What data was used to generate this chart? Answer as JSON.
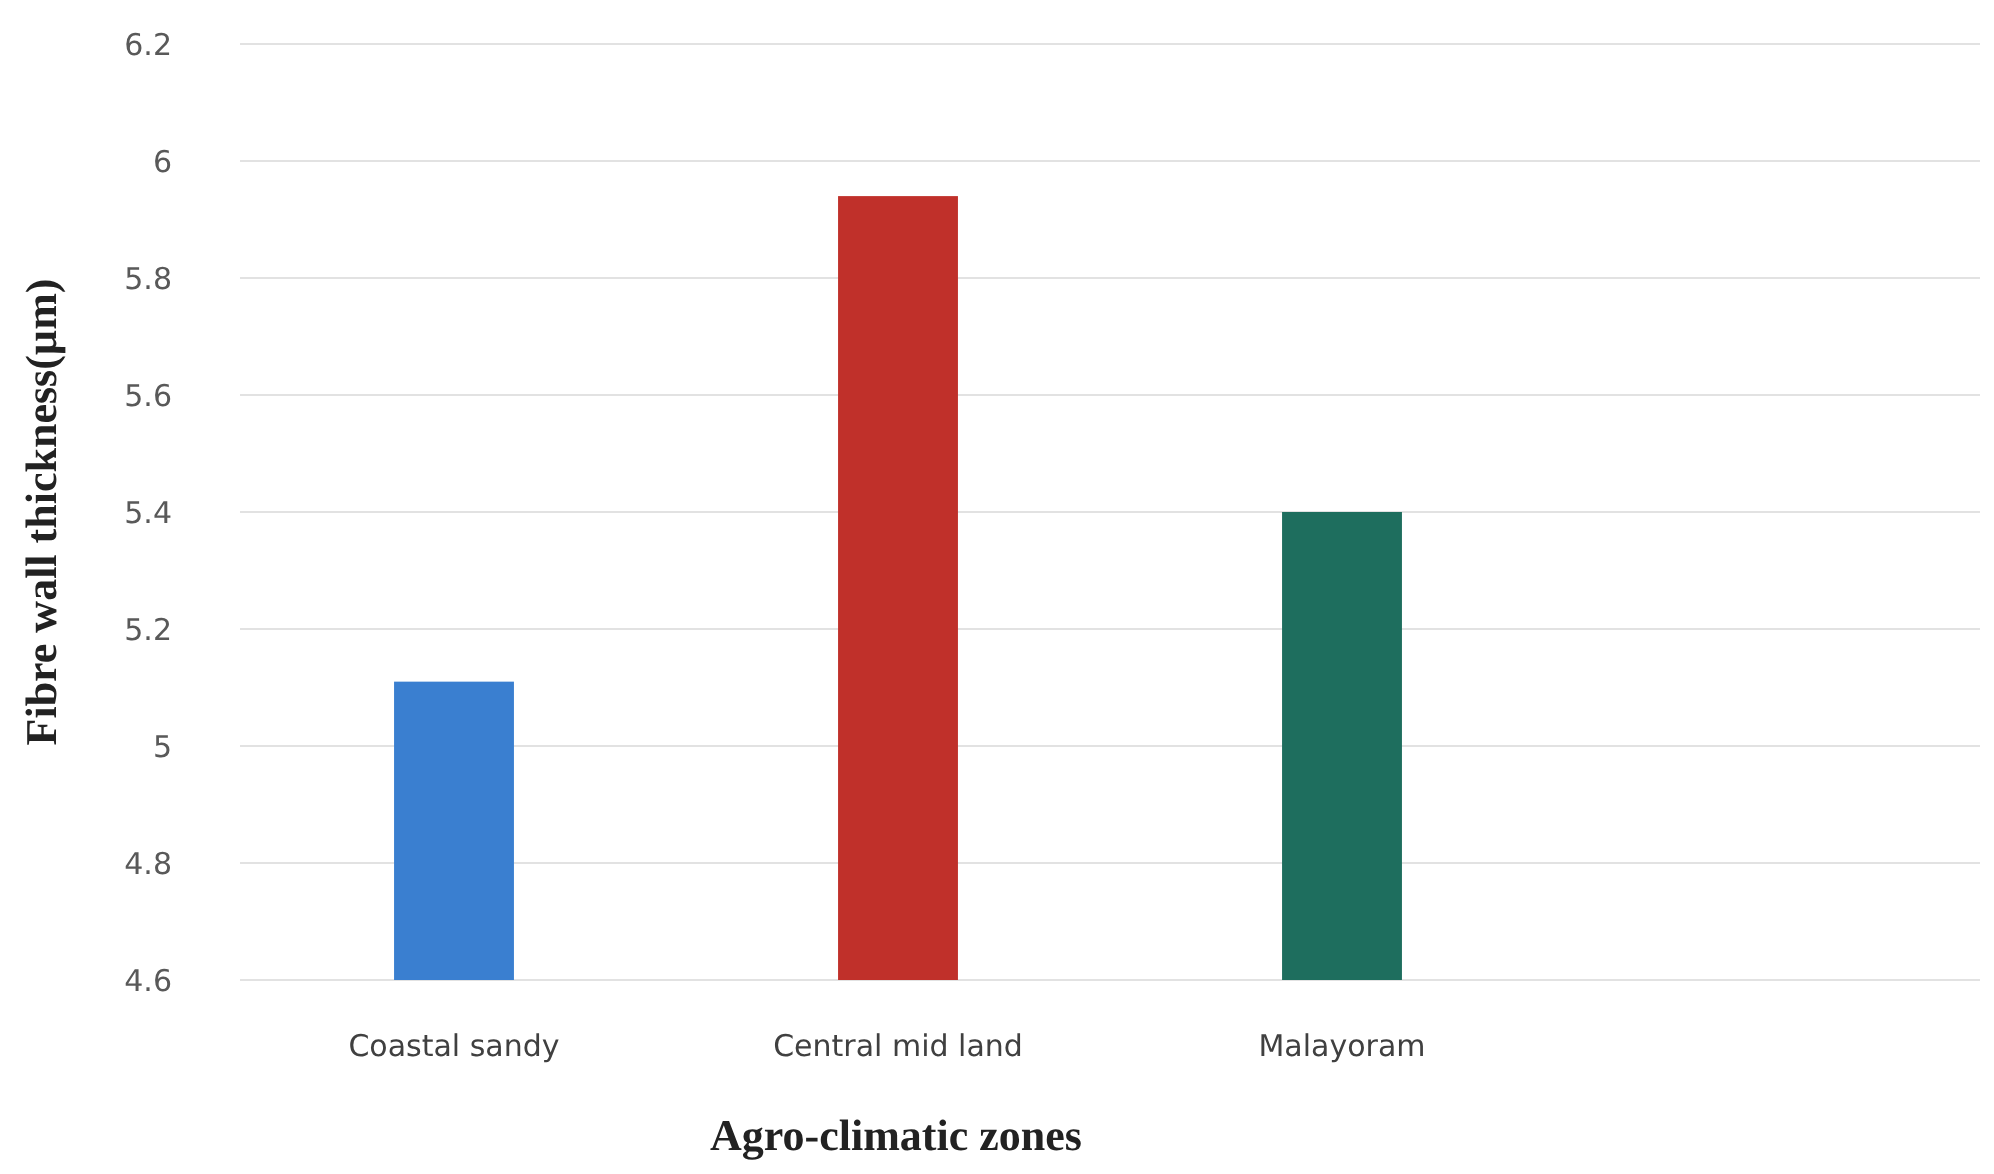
{
  "chart_data": {
    "type": "bar",
    "xlabel": "Agro-climatic zones",
    "ylabel": "Fibre wall thickness(µm)",
    "categories": [
      "Coastal sandy",
      "Central mid land",
      "Malayoram"
    ],
    "values": [
      5.11,
      5.94,
      5.4
    ],
    "colors": [
      "#3a7fd0",
      "#c0302a",
      "#1e6e5e"
    ],
    "ylim": [
      4.6,
      6.2
    ],
    "yticks": [
      4.6,
      4.8,
      5,
      5.2,
      5.4,
      5.6,
      5.8,
      6,
      6.2
    ],
    "grid": "y"
  }
}
